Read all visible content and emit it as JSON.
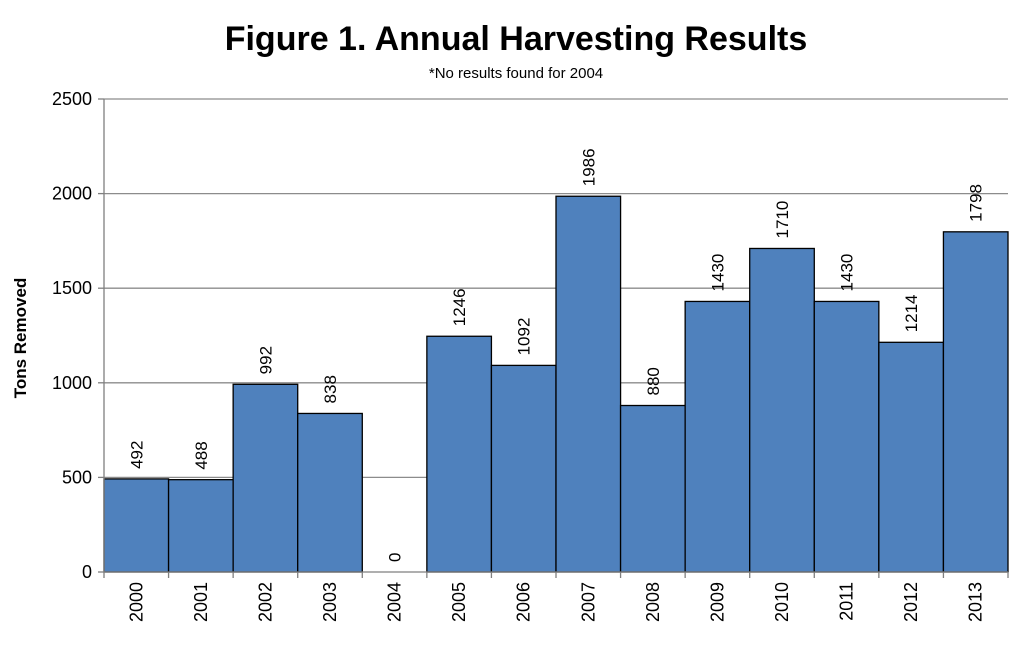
{
  "chart_data": {
    "type": "bar",
    "title": "Figure 1. Annual Harvesting Results",
    "subtitle": "*No results found for 2004",
    "xlabel": "",
    "ylabel": "Tons Removed",
    "ylim": [
      0,
      2500
    ],
    "yticks": [
      0,
      500,
      1000,
      1500,
      2000,
      2500
    ],
    "grid": true,
    "legend": "none",
    "bar_color": "#4f81bd",
    "categories": [
      "2000",
      "2001",
      "2002",
      "2003",
      "2004",
      "2005",
      "2006",
      "2007",
      "2008",
      "2009",
      "2010",
      "2011",
      "2012",
      "2013"
    ],
    "values": [
      492,
      488,
      992,
      838,
      0,
      1246,
      1092,
      1986,
      880,
      1430,
      1710,
      1430,
      1214,
      1798
    ],
    "data_labels": [
      "492",
      "488",
      "992",
      "838",
      "0",
      "1246",
      "1092",
      "1986",
      "880",
      "1430",
      "1710",
      "1430",
      "1214",
      "1798"
    ]
  }
}
